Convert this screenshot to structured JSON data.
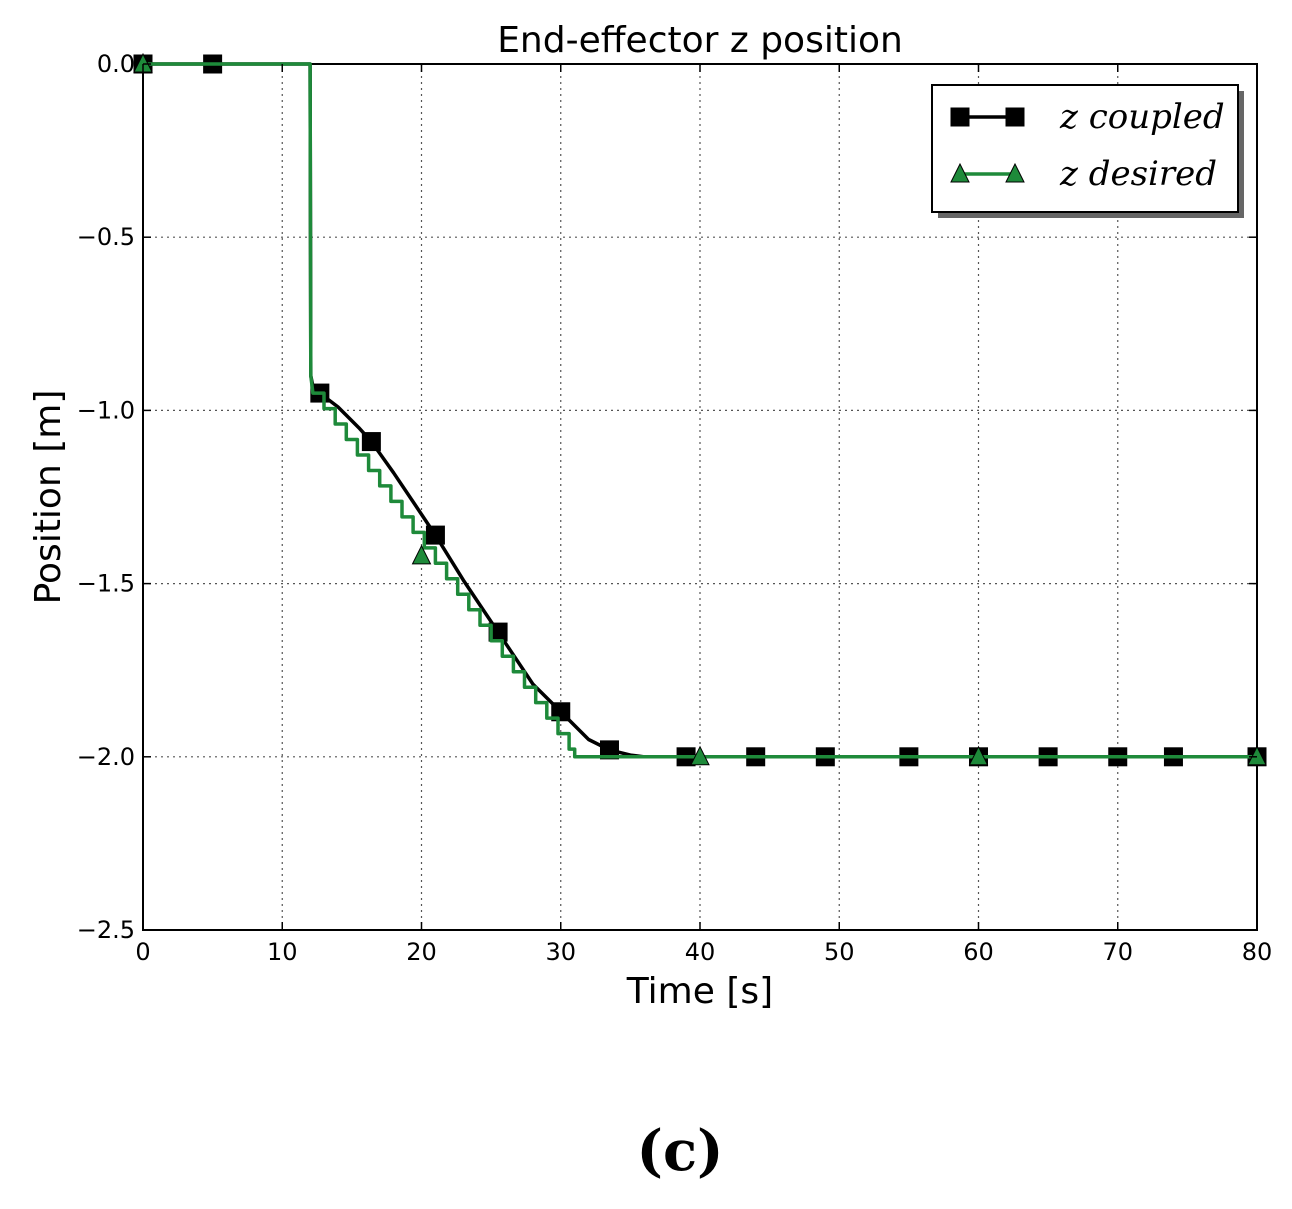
{
  "chart_data": {
    "type": "line",
    "title": "End-effector z position",
    "xlabel": "Time [s]",
    "ylabel": "Position [m]",
    "xlim": [
      0,
      80
    ],
    "ylim": [
      -2.5,
      0.0
    ],
    "xticks": [
      0,
      10,
      20,
      30,
      40,
      50,
      60,
      70,
      80
    ],
    "xtick_labels": [
      "0",
      "10",
      "20",
      "30",
      "40",
      "50",
      "60",
      "70",
      "80"
    ],
    "yticks": [
      0.0,
      -0.5,
      -1.0,
      -1.5,
      -2.0,
      -2.5
    ],
    "ytick_labels": [
      "0.0",
      "−0.5",
      "−1.0",
      "−1.5",
      "−2.0",
      "−2.5"
    ],
    "grid": true,
    "legend_position": "top-right",
    "series": [
      {
        "name": "z coupled",
        "color": "#000000",
        "marker": "square",
        "x": [
          0,
          12,
          12.05,
          12.2,
          12.7,
          14,
          15.5,
          16.4,
          18,
          19.5,
          21,
          23,
          25.5,
          28,
          30,
          32,
          33.5,
          35,
          36,
          39,
          44,
          49,
          55,
          60,
          65,
          70,
          74,
          80
        ],
        "y": [
          0.0,
          0.0,
          -0.9,
          -0.93,
          -0.95,
          -0.99,
          -1.05,
          -1.09,
          -1.18,
          -1.27,
          -1.36,
          -1.49,
          -1.64,
          -1.79,
          -1.87,
          -1.95,
          -1.98,
          -1.995,
          -2.0,
          -2.0,
          -2.0,
          -2.0,
          -2.0,
          -2.0,
          -2.0,
          -2.0,
          -2.0,
          -2.0
        ],
        "markers_x": [
          0,
          5,
          12.7,
          16.4,
          21,
          25.5,
          30,
          33.5,
          39,
          44,
          49,
          55,
          60,
          65,
          70,
          74,
          80
        ],
        "markers_y": [
          0.0,
          0.0,
          -0.95,
          -1.09,
          -1.36,
          -1.64,
          -1.87,
          -1.98,
          -2.0,
          -2.0,
          -2.0,
          -2.0,
          -2.0,
          -2.0,
          -2.0,
          -2.0,
          -2.0
        ]
      },
      {
        "name": "z desired",
        "color": "#1e8a3a",
        "marker": "triangle",
        "step_from": 12.2,
        "step_to": 31,
        "step_size": 0.8,
        "x": [
          0,
          12,
          12.05,
          12.2,
          31,
          80
        ],
        "y": [
          0.0,
          0.0,
          -0.9,
          -0.95,
          -2.0,
          -2.0
        ],
        "markers_x": [
          0,
          20,
          40,
          60,
          80
        ],
        "markers_y": [
          0.0,
          -1.42,
          -2.0,
          -2.0,
          -2.0
        ]
      }
    ],
    "caption": "(c)"
  }
}
